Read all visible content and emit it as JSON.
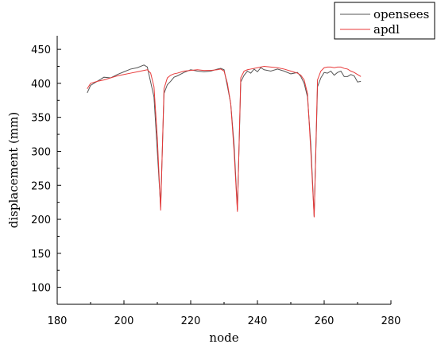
{
  "chart_data": {
    "type": "line",
    "xlabel": "node",
    "ylabel": "displacement (mm)",
    "xlim": [
      180,
      280
    ],
    "ylim": [
      75,
      470
    ],
    "xticks": [
      180,
      200,
      220,
      240,
      260,
      280
    ],
    "yticks": [
      100,
      150,
      200,
      250,
      300,
      350,
      400,
      450
    ],
    "legend_position": "top-right",
    "grid": false,
    "series": [
      {
        "name": "opensees",
        "color": "#555555",
        "x": [
          189,
          190,
          192,
          194,
          196,
          198,
          200,
          202,
          204,
          206,
          207,
          208,
          209,
          210,
          211,
          212,
          213,
          214,
          215,
          216,
          218,
          220,
          222,
          224,
          226,
          228,
          229,
          230,
          231,
          232,
          233,
          234,
          235,
          236,
          237,
          238,
          239,
          240,
          241,
          242,
          244,
          246,
          248,
          250,
          252,
          253,
          254,
          255,
          256,
          257,
          258,
          259,
          260,
          261,
          262,
          263,
          264,
          265,
          266,
          267,
          268,
          269,
          270,
          271
        ],
        "y": [
          386,
          397,
          403,
          409,
          408,
          413,
          417,
          421,
          423,
          427,
          424,
          402,
          380,
          300,
          218,
          385,
          398,
          403,
          409,
          411,
          416,
          420,
          418,
          417,
          418,
          421,
          422,
          420,
          396,
          370,
          310,
          214,
          402,
          412,
          418,
          415,
          421,
          417,
          423,
          420,
          418,
          421,
          418,
          414,
          416,
          410,
          400,
          380,
          310,
          204,
          395,
          408,
          416,
          415,
          418,
          412,
          416,
          418,
          410,
          410,
          413,
          411,
          402,
          403
        ]
      },
      {
        "name": "apdl",
        "color": "#e83a3a",
        "x": [
          189,
          190,
          192,
          194,
          196,
          198,
          200,
          202,
          204,
          206,
          207,
          208,
          209,
          210,
          211,
          212,
          213,
          214,
          215,
          216,
          218,
          220,
          222,
          224,
          226,
          228,
          229,
          230,
          231,
          232,
          233,
          234,
          235,
          236,
          237,
          238,
          239,
          240,
          241,
          242,
          244,
          246,
          248,
          250,
          252,
          253,
          254,
          255,
          256,
          257,
          258,
          259,
          260,
          261,
          262,
          263,
          264,
          265,
          266,
          267,
          268,
          269,
          270,
          271
        ],
        "y": [
          392,
          400,
          403,
          405,
          408,
          411,
          413,
          415,
          417,
          419,
          420,
          415,
          395,
          320,
          213,
          392,
          408,
          412,
          414,
          415,
          418,
          419,
          420,
          419,
          419,
          420,
          421,
          418,
          400,
          370,
          300,
          211,
          408,
          418,
          420,
          421,
          422,
          423,
          424,
          425,
          424,
          423,
          421,
          418,
          415,
          412,
          405,
          385,
          300,
          203,
          405,
          418,
          423,
          424,
          424,
          423,
          424,
          424,
          422,
          421,
          418,
          416,
          413,
          410
        ]
      }
    ]
  }
}
